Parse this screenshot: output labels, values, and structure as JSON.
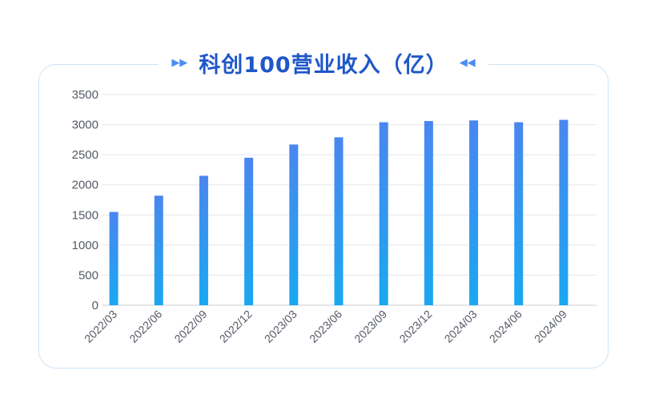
{
  "chart_data": {
    "type": "bar",
    "title": "科创100营业收入（亿）",
    "categories": [
      "2022/03",
      "2022/06",
      "2022/09",
      "2022/12",
      "2023/03",
      "2023/06",
      "2023/09",
      "2023/12",
      "2024/03",
      "2024/06",
      "2024/09"
    ],
    "values": [
      1550,
      1820,
      2150,
      2450,
      2670,
      2790,
      3040,
      3060,
      3070,
      3040,
      3080
    ],
    "xlabel": "",
    "ylabel": "",
    "ylim": [
      0,
      3500
    ],
    "yticks": [
      "0",
      "500",
      "1000",
      "1500",
      "2000",
      "2500",
      "3000",
      "3500"
    ],
    "grid": true,
    "legend": "none",
    "colors": {
      "bar_top": "#4a86f0",
      "bar_bottom": "#1aa8f0",
      "title": "#1f57c9",
      "accent": "#4a8ef0"
    }
  }
}
